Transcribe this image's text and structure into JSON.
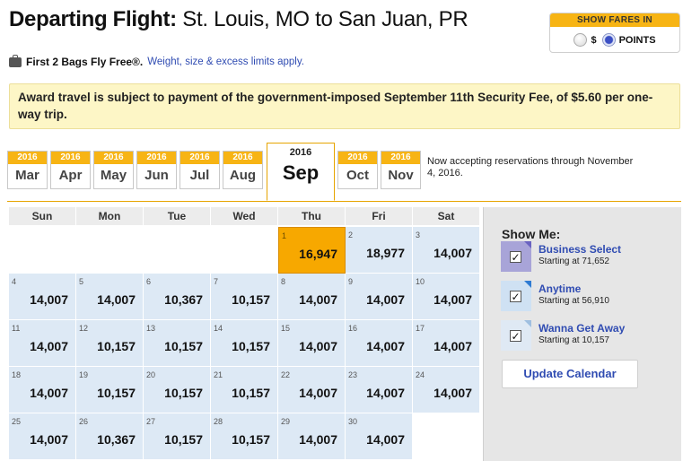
{
  "header": {
    "title_bold": "Departing Flight:",
    "title_route": "St. Louis, MO to San Juan, PR"
  },
  "fares": {
    "heading": "SHOW FARES IN",
    "options": [
      {
        "label": "$",
        "selected": false
      },
      {
        "label": "POINTS",
        "selected": true
      }
    ]
  },
  "bags": {
    "icon": "suitcase-icon",
    "text": "First 2 Bags Fly Free®.",
    "link": "Weight, size & excess limits apply."
  },
  "notice": "Award travel is subject to payment of the government-imposed September 11th Security Fee, of $5.60 per one-way trip.",
  "months": [
    {
      "year": "2016",
      "month": "Mar",
      "selected": false
    },
    {
      "year": "2016",
      "month": "Apr",
      "selected": false
    },
    {
      "year": "2016",
      "month": "May",
      "selected": false
    },
    {
      "year": "2016",
      "month": "Jun",
      "selected": false
    },
    {
      "year": "2016",
      "month": "Jul",
      "selected": false
    },
    {
      "year": "2016",
      "month": "Aug",
      "selected": false
    },
    {
      "year": "2016",
      "month": "Sep",
      "selected": true
    },
    {
      "year": "2016",
      "month": "Oct",
      "selected": false
    },
    {
      "year": "2016",
      "month": "Nov",
      "selected": false
    }
  ],
  "reservation_note": "Now accepting reservations through November 4, 2016.",
  "calendar": {
    "days_of_week": [
      "Sun",
      "Mon",
      "Tue",
      "Wed",
      "Thu",
      "Fri",
      "Sat"
    ],
    "leading_blanks": 4,
    "selected_day": "1",
    "days": [
      {
        "day": "1",
        "price": "16,947"
      },
      {
        "day": "2",
        "price": "18,977"
      },
      {
        "day": "3",
        "price": "14,007"
      },
      {
        "day": "4",
        "price": "14,007"
      },
      {
        "day": "5",
        "price": "14,007"
      },
      {
        "day": "6",
        "price": "10,367"
      },
      {
        "day": "7",
        "price": "10,157"
      },
      {
        "day": "8",
        "price": "14,007"
      },
      {
        "day": "9",
        "price": "14,007"
      },
      {
        "day": "10",
        "price": "14,007"
      },
      {
        "day": "11",
        "price": "14,007"
      },
      {
        "day": "12",
        "price": "10,157"
      },
      {
        "day": "13",
        "price": "10,157"
      },
      {
        "day": "14",
        "price": "10,157"
      },
      {
        "day": "15",
        "price": "14,007"
      },
      {
        "day": "16",
        "price": "14,007"
      },
      {
        "day": "17",
        "price": "14,007"
      },
      {
        "day": "18",
        "price": "14,007"
      },
      {
        "day": "19",
        "price": "10,157"
      },
      {
        "day": "20",
        "price": "10,157"
      },
      {
        "day": "21",
        "price": "10,157"
      },
      {
        "day": "22",
        "price": "14,007"
      },
      {
        "day": "23",
        "price": "14,007"
      },
      {
        "day": "24",
        "price": "14,007"
      },
      {
        "day": "25",
        "price": "14,007"
      },
      {
        "day": "26",
        "price": "10,367"
      },
      {
        "day": "27",
        "price": "10,157"
      },
      {
        "day": "28",
        "price": "10,157"
      },
      {
        "day": "29",
        "price": "14,007"
      },
      {
        "day": "30",
        "price": "14,007"
      }
    ]
  },
  "show_me": {
    "title": "Show Me:",
    "options": [
      {
        "name": "Business Select",
        "starting": "Starting at 71,652",
        "checked": true,
        "check_mark": "✓"
      },
      {
        "name": "Anytime",
        "starting": "Starting at 56,910",
        "checked": true,
        "check_mark": "✓"
      },
      {
        "name": "Wanna Get Away",
        "starting": "Starting at 10,157",
        "checked": true,
        "check_mark": "✓"
      }
    ],
    "update_button": "Update Calendar"
  }
}
